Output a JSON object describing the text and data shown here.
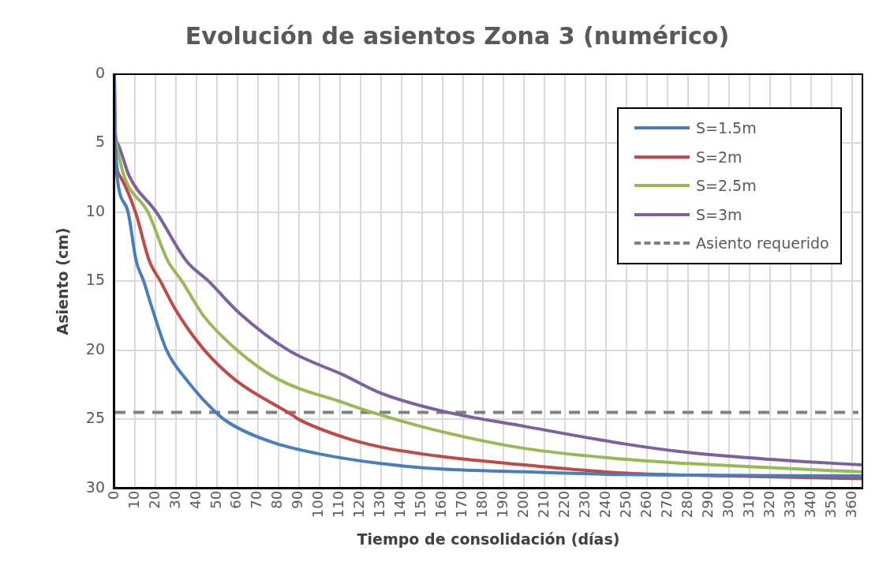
{
  "chart_data": {
    "type": "line",
    "title": "Evolución de asientos Zona 3 (numérico)",
    "xlabel": "Tiempo de consolidación (días)",
    "ylabel": "Asiento (cm)",
    "xlim": [
      0,
      365
    ],
    "xticks": [
      0,
      10,
      20,
      30,
      40,
      50,
      60,
      70,
      80,
      90,
      100,
      110,
      120,
      130,
      140,
      150,
      160,
      170,
      180,
      190,
      200,
      210,
      220,
      230,
      240,
      250,
      260,
      270,
      280,
      290,
      300,
      310,
      320,
      330,
      340,
      350,
      360
    ],
    "ylim": [
      30,
      0
    ],
    "yticks": [
      0,
      5,
      10,
      15,
      20,
      25,
      30
    ],
    "grid": true,
    "legend": "top right",
    "marker": "none",
    "line_style": "solid",
    "series": [
      {
        "name": "S=1.5m",
        "color": "#4a7ebb",
        "x": [
          0,
          0.2,
          0.5,
          1.3,
          6.7,
          10.6,
          14.3,
          18.3,
          25.5,
          35,
          51.8,
          60,
          78,
          100,
          130,
          160,
          200,
          250,
          300,
          365
        ],
        "values": [
          0,
          3.6,
          5.5,
          7.4,
          10,
          13.5,
          15,
          16.9,
          20,
          22.1,
          24.8,
          25.6,
          26.7,
          27.5,
          28.2,
          28.6,
          28.8,
          29.0,
          29.05,
          29.1
        ]
      },
      {
        "name": "S=2m",
        "color": "#be4b48",
        "x": [
          0,
          0.2,
          0.3,
          2.8,
          10.3,
          17,
          22.5,
          30,
          44,
          59.5,
          87,
          90,
          112,
          130,
          160,
          200,
          250,
          300,
          365
        ],
        "values": [
          0,
          3.6,
          5,
          7.4,
          10,
          13.5,
          15,
          17.1,
          20,
          22.2,
          24.7,
          25,
          26.3,
          27.0,
          27.7,
          28.3,
          28.9,
          29.1,
          29.3
        ]
      },
      {
        "name": "S=2.5m",
        "color": "#98b954",
        "x": [
          0,
          0.2,
          0.9,
          4.8,
          16.4,
          26,
          33,
          43.5,
          60,
          80,
          112,
          126,
          160,
          200,
          250,
          280,
          320,
          365
        ],
        "values": [
          0,
          3.6,
          5,
          7.4,
          10,
          13.5,
          15,
          17.5,
          20,
          22.1,
          23.8,
          24.5,
          25.9,
          27.1,
          27.9,
          28.2,
          28.5,
          28.8
        ]
      },
      {
        "name": "S=3m",
        "color": "#7d60a0",
        "x": [
          0,
          0.2,
          1.5,
          7.3,
          20.5,
          35,
          46,
          61,
          85,
          112,
          130,
          160,
          200,
          250,
          280,
          320,
          365
        ],
        "values": [
          0,
          3.6,
          5,
          7.4,
          10,
          13.5,
          15,
          17.3,
          20,
          21.8,
          23.1,
          24.4,
          25.5,
          26.8,
          27.4,
          27.9,
          28.3
        ]
      },
      {
        "name": "Asiento requerido",
        "color": "#808080",
        "line_style": "dashed",
        "x": [
          0,
          363
        ],
        "values": [
          24.5,
          24.5
        ]
      }
    ]
  }
}
